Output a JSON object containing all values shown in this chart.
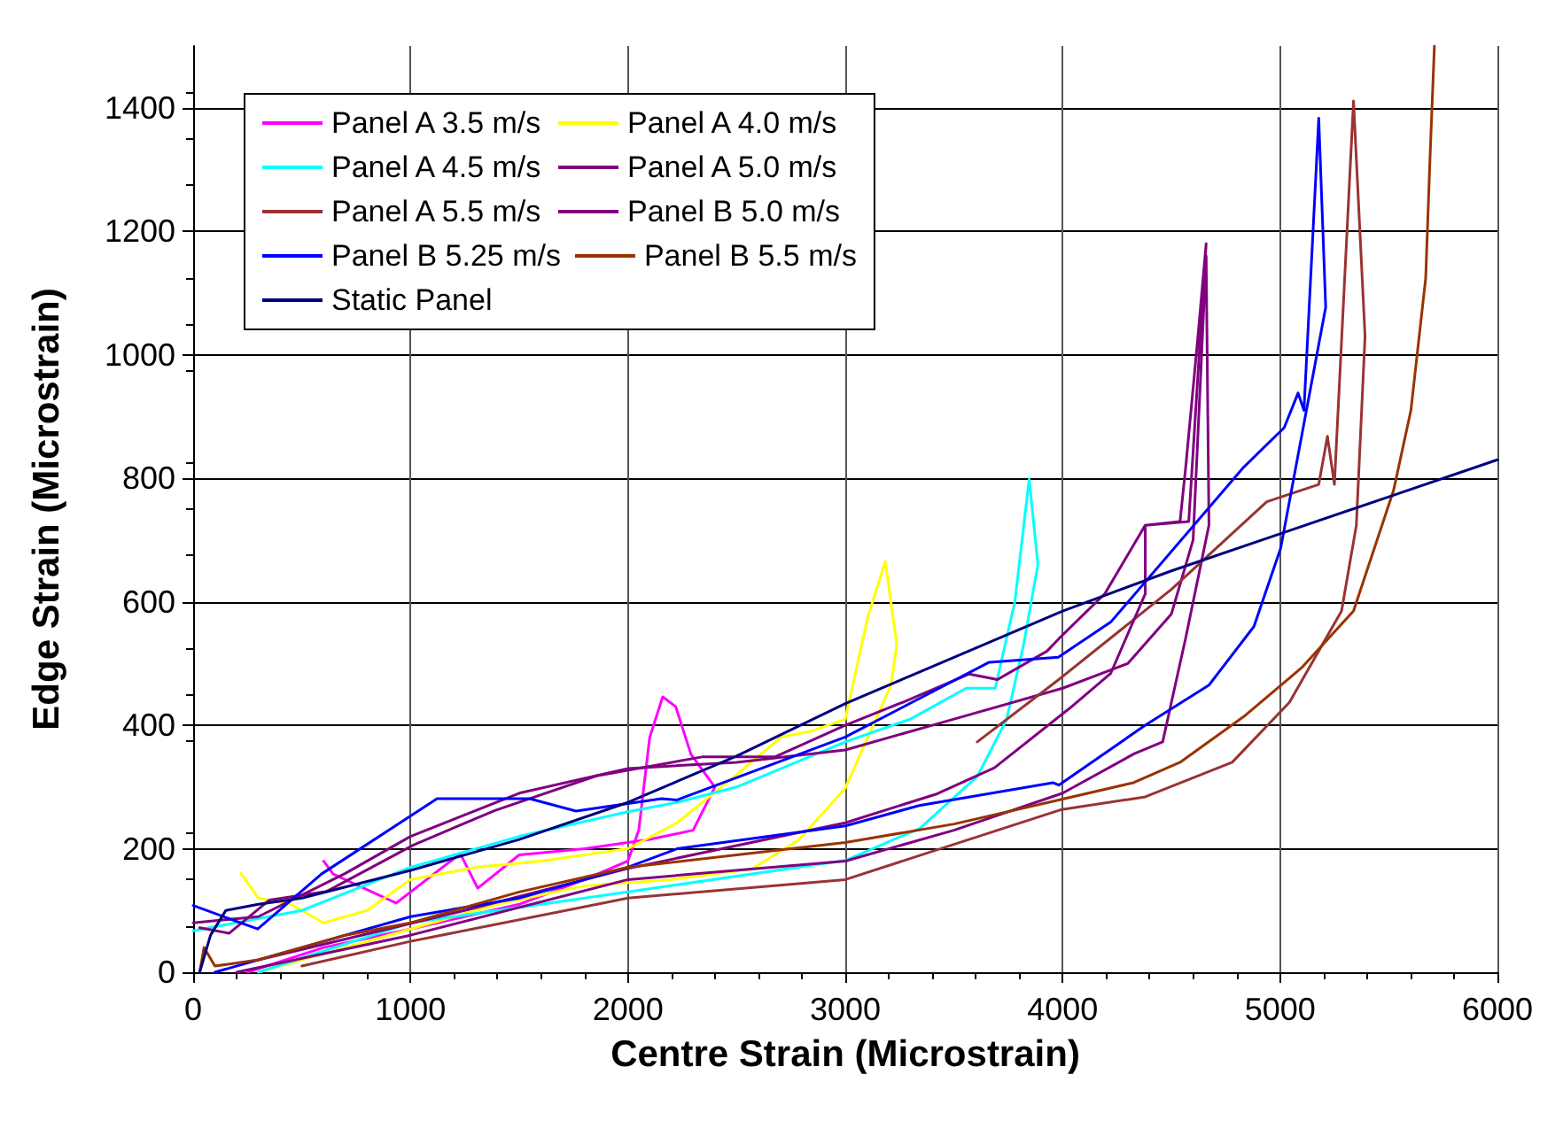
{
  "chart_data": {
    "type": "line",
    "xlabel": "Centre Strain (Microstrain)",
    "ylabel": "Edge Strain (Microstrain)",
    "xlim": [
      0,
      6000
    ],
    "xticks": [
      0,
      1000,
      2000,
      3000,
      4000,
      5000,
      6000
    ],
    "ylim": [
      0,
      1500
    ],
    "yticks": [
      0,
      200,
      400,
      600,
      800,
      1000,
      1200,
      1400
    ],
    "grid": true,
    "legend": "top left",
    "marker": "none",
    "series": [
      {
        "name": "Panel A 3.5 m/s",
        "color": "#ff00ff",
        "x": [
          250,
          600,
          1000,
          1500,
          1800,
          2000,
          2050,
          2100,
          2160,
          2220,
          2290,
          2400,
          2300,
          2100,
          1800,
          1500,
          1309,
          1229,
          934,
          644,
          600
        ],
        "values": [
          0,
          40,
          70,
          110,
          150,
          180,
          230,
          380,
          446,
          430,
          353,
          300,
          230,
          215,
          200,
          190,
          136,
          192,
          112,
          159,
          180
        ]
      },
      {
        "name": "Panel A 4.0 m/s",
        "color": "#ffff00",
        "x": [
          220,
          300,
          450,
          600,
          800,
          1000,
          1300,
          1600,
          2000,
          2226,
          2500,
          2705,
          2840,
          3000,
          3104,
          3184,
          3237,
          3210,
          3000,
          2785,
          2570,
          2200,
          1800,
          1400,
          1000,
          600,
          300
        ],
        "values": [
          160,
          120,
          110,
          80,
          100,
          150,
          170,
          180,
          200,
          242,
          320,
          381,
          390,
          410,
          576,
          665,
          530,
          465,
          298,
          214,
          167,
          150,
          140,
          110,
          70,
          30,
          0
        ]
      },
      {
        "name": "Panel A 4.5 m/s",
        "color": "#00ffff",
        "x": [
          0,
          500,
          1000,
          1500,
          2000,
          2226,
          2500,
          3000,
          3300,
          3556,
          3690,
          3780,
          3846,
          3886,
          3820,
          3742,
          3607,
          3343,
          3000,
          2000,
          1000,
          300
        ],
        "values": [
          67,
          100,
          170,
          220,
          260,
          275,
          300,
          373,
          410,
          460,
          460,
          600,
          799,
          660,
          530,
          409,
          317,
          233,
          181,
          130,
          80,
          0
        ]
      },
      {
        "name": "Panel A 5.0 m/s",
        "color": "#800080",
        "x": [
          0,
          300,
          700,
          1000,
          1500,
          2000,
          2500,
          3000,
          3500,
          4000,
          4300,
          4500,
          4600,
          4660,
          4673,
          4565,
          4460,
          4330,
          4000,
          3500,
          3000,
          2000,
          1000,
          200
        ],
        "values": [
          80,
          90,
          160,
          220,
          290,
          330,
          340,
          360,
          410,
          460,
          500,
          580,
          700,
          1160,
          724,
          540,
          373,
          354,
          290,
          230,
          180,
          150,
          60,
          0
        ]
      },
      {
        "name": "Panel A 5.5 m/s",
        "color": "#993333",
        "x": [
          3607,
          3982,
          4500,
          4939,
          5178,
          5218,
          5250,
          5338,
          5391,
          5351,
          5283,
          5043,
          4780,
          4380,
          3990,
          3000,
          2000,
          1000,
          500
        ],
        "values": [
          373,
          474,
          620,
          762,
          790,
          868,
          790,
          1411,
          1030,
          724,
          585,
          437,
          340,
          284,
          263,
          150,
          120,
          50,
          10
        ]
      },
      {
        "name": "Panel B 5.0 m/s",
        "color": "#800080",
        "x": [
          300,
          694,
          1282,
          2000,
          2500,
          3000,
          3423,
          3686,
          4034,
          4221,
          4380,
          4380,
          4540,
          4566,
          4620,
          4660,
          4580,
          4380,
          4194,
          3982,
          3928,
          3700,
          3570,
          3263,
          3000,
          2678,
          2346,
          1855,
          1388,
          1013,
          615,
          351,
          165,
          30
        ],
        "values": [
          20,
          53,
          103,
          168,
          205,
          242,
          289,
          331,
          428,
          484,
          613,
          724,
          730,
          818,
          1021,
          1180,
          730,
          724,
          613,
          540,
          520,
          474,
          483,
          437,
          400,
          349,
          349,
          318,
          262,
          206,
          131,
          117,
          63,
          72
        ]
      },
      {
        "name": "Panel B 5.25 m/s",
        "color": "#0000ff",
        "x": [
          0,
          297,
          590,
          1122,
          1548,
          1761,
          2155,
          2226,
          3000,
          3662,
          3980,
          4221,
          4833,
          5019,
          5083,
          5110,
          5178,
          5210,
          5003,
          4880,
          4673,
          4380,
          3982,
          3955,
          3340,
          3000,
          2226,
          2000,
          1500,
          1000,
          500,
          100
        ],
        "values": [
          108,
          70,
          159,
          281,
          281,
          261,
          281,
          279,
          381,
          502,
          510,
          567,
          818,
          882,
          938,
          910,
          1383,
          1077,
          687,
          560,
          465,
          400,
          303,
          307,
          270,
          237,
          200,
          170,
          120,
          90,
          40,
          0
        ]
      },
      {
        "name": "Panel B 5.5 m/s",
        "color": "#993300",
        "x": [
          30,
          50,
          100,
          300,
          700,
          1000,
          1500,
          2000,
          2500,
          3000,
          3500,
          3982,
          4326,
          4540,
          4833,
          5099,
          5338,
          5522,
          5602,
          5670,
          5690,
          5710
        ],
        "values": [
          0,
          40,
          10,
          20,
          60,
          80,
          130,
          170,
          190,
          210,
          240,
          279,
          307,
          340,
          414,
          493,
          585,
          780,
          910,
          1124,
          1320,
          1500
        ]
      },
      {
        "name": "Static Panel",
        "color": "#000080",
        "x": [
          30,
          80,
          150,
          300,
          500,
          1000,
          1500,
          2000,
          2500,
          3000,
          3500,
          4000,
          4500,
          5000,
          5500,
          6000
        ],
        "values": [
          0,
          60,
          100,
          110,
          120,
          165,
          215,
          275,
          350,
          435,
          510,
          585,
          650,
          710,
          770,
          830
        ]
      }
    ]
  }
}
